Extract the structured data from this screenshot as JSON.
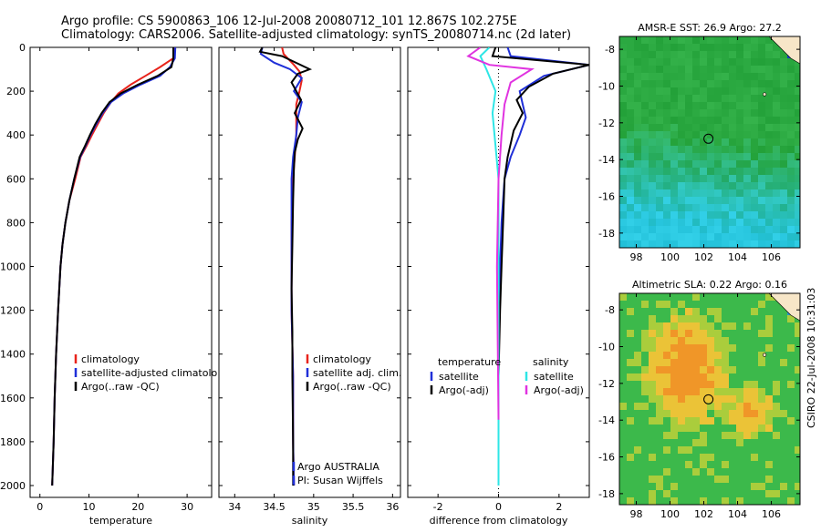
{
  "header": {
    "title_line1": "Argo profile: CS 5900863_106 12-Jul-2008 20080712_101 12.867S 102.275E",
    "title_line2": "Climatology: CARS2006. Satellite-adjusted climatology: synTS_20080714.nc (2d later)"
  },
  "side_stamp": "CSIRO 22-Jul-2008 10:31:03",
  "colors": {
    "climatology": "#e8231b",
    "satellite": "#1f2fd8",
    "argo": "#000000",
    "satellite_diff_salinity": "#2ee6e6",
    "argo_diff_salinity": "#e033e0"
  },
  "chart_data": [
    {
      "id": "temperature",
      "type": "line",
      "xlabel": "temperature",
      "ylabel": "",
      "xlim": [
        -2,
        35
      ],
      "ylim": [
        2050,
        0
      ],
      "xticks": [
        0,
        10,
        20,
        30
      ],
      "yticks": [
        0,
        200,
        400,
        600,
        800,
        1000,
        1200,
        1400,
        1600,
        1800,
        2000
      ],
      "legend_position": "bottom-right",
      "series": [
        {
          "name": "climatology",
          "color_key": "climatology",
          "x": [
            27.3,
            27.2,
            24.5,
            21.5,
            18.5,
            16,
            14.5,
            13,
            11.8,
            10.6,
            9.5,
            8.3,
            7.2,
            6,
            5.2,
            4.6,
            4.2,
            3.7,
            3.3,
            3,
            2.8,
            2.5
          ],
          "y": [
            0,
            50,
            90,
            130,
            170,
            210,
            250,
            300,
            350,
            400,
            450,
            500,
            600,
            700,
            800,
            900,
            1000,
            1200,
            1400,
            1600,
            1800,
            2000
          ]
        },
        {
          "name": "satellite-adjusted climatology",
          "color_key": "satellite",
          "x": [
            27.6,
            27.5,
            26.5,
            24.5,
            20.5,
            17,
            14.5,
            12.8,
            11.5,
            10.3,
            9.3,
            8.2,
            7,
            6,
            5.2,
            4.6,
            4.2,
            3.7,
            3.3,
            3,
            2.8,
            2.5
          ],
          "y": [
            0,
            50,
            90,
            130,
            170,
            210,
            250,
            300,
            350,
            400,
            450,
            500,
            600,
            700,
            800,
            900,
            1000,
            1200,
            1400,
            1600,
            1800,
            2000
          ]
        },
        {
          "name": "Argo(..raw -QC)",
          "color_key": "argo",
          "x": [
            27.2,
            27.2,
            26.8,
            24,
            20,
            16.5,
            14.2,
            12.6,
            11.3,
            10.2,
            9.2,
            8.1,
            7,
            6,
            5.2,
            4.6,
            4.2,
            3.7,
            3.3,
            3,
            2.8,
            2.5
          ],
          "y": [
            0,
            50,
            90,
            130,
            170,
            210,
            250,
            300,
            350,
            400,
            450,
            500,
            600,
            700,
            800,
            900,
            1000,
            1200,
            1400,
            1600,
            1800,
            2000
          ]
        }
      ],
      "legend": [
        "climatology",
        "satellite-adjusted climatolo",
        "Argo(..raw -QC)"
      ]
    },
    {
      "id": "salinity",
      "type": "line",
      "xlabel": "salinity",
      "xlim": [
        33.8,
        36.1
      ],
      "ylim": [
        2050,
        0
      ],
      "xticks": [
        34,
        34.5,
        35,
        35.5,
        36
      ],
      "xtick_labels": [
        "34",
        "34.5",
        "35",
        "35.5",
        "36"
      ],
      "legend_position": "bottom-right",
      "annotation": [
        "Argo AUSTRALIA",
        "PI: Susan Wijffels"
      ],
      "series": [
        {
          "name": "climatology",
          "color_key": "climatology",
          "x": [
            34.6,
            34.62,
            34.75,
            34.82,
            34.85,
            34.82,
            34.78,
            34.78,
            34.78,
            34.76,
            34.74,
            34.72,
            34.72,
            34.72,
            34.74,
            34.74,
            34.75
          ],
          "y": [
            0,
            30,
            80,
            110,
            150,
            200,
            260,
            320,
            400,
            500,
            600,
            800,
            1000,
            1200,
            1500,
            1800,
            2000
          ]
        },
        {
          "name": "satellite adj. clim.",
          "color_key": "satellite",
          "x": [
            34.35,
            34.33,
            34.5,
            34.7,
            34.85,
            34.75,
            34.85,
            34.8,
            34.78,
            34.74,
            34.72,
            34.72,
            34.72,
            34.72,
            34.74,
            34.74,
            34.75
          ],
          "y": [
            0,
            30,
            70,
            100,
            140,
            200,
            250,
            320,
            400,
            500,
            600,
            800,
            1000,
            1200,
            1500,
            1800,
            2000
          ]
        },
        {
          "name": "Argo(..raw -QC)",
          "color_key": "argo",
          "x": [
            34.35,
            34.32,
            34.6,
            34.95,
            34.8,
            34.72,
            34.84,
            34.76,
            34.86,
            34.8,
            34.76,
            34.75,
            34.74,
            34.73,
            34.72,
            34.73,
            34.73,
            34.74,
            34.74
          ],
          "y": [
            0,
            20,
            40,
            100,
            120,
            160,
            240,
            300,
            370,
            420,
            480,
            550,
            700,
            900,
            1100,
            1300,
            1500,
            1800,
            2000
          ]
        }
      ],
      "legend": [
        "climatology",
        "satellite adj. clim.",
        "Argo(..raw -QC)"
      ]
    },
    {
      "id": "difference",
      "type": "line",
      "xlabel": "difference from climatology",
      "xlim": [
        -3,
        3
      ],
      "ylim": [
        2050,
        0
      ],
      "xticks": [
        -2,
        0,
        2
      ],
      "legend_position": "bottom-left",
      "legend_headers": [
        "temperature",
        "salinity"
      ],
      "series": [
        {
          "name": "satellite",
          "group": "temperature",
          "color_key": "satellite",
          "x": [
            0.3,
            0.4,
            3,
            1.5,
            0.7,
            0.8,
            0.9,
            0.7,
            0.4,
            0.2,
            0.1,
            0.05,
            0,
            0,
            0,
            0
          ],
          "y": [
            0,
            40,
            80,
            130,
            200,
            260,
            320,
            400,
            500,
            600,
            800,
            1000,
            1200,
            1500,
            1800,
            2000
          ]
        },
        {
          "name": "Argo(-adj)",
          "group": "temperature",
          "color_key": "argo",
          "x": [
            -0.1,
            -0.2,
            3,
            1.8,
            1.0,
            0.6,
            0.8,
            0.5,
            0.3,
            0.2,
            0.15,
            0.1,
            0.05,
            0,
            0,
            0
          ],
          "y": [
            0,
            40,
            80,
            120,
            180,
            240,
            300,
            380,
            500,
            600,
            800,
            1000,
            1200,
            1500,
            1800,
            2000
          ]
        },
        {
          "name": "satellite",
          "group": "salinity",
          "color_key": "satellite_diff_salinity",
          "x": [
            -0.3,
            -0.6,
            -0.4,
            -0.1,
            -0.2,
            -0.1,
            0,
            0,
            0,
            0
          ],
          "y": [
            0,
            40,
            100,
            200,
            300,
            450,
            600,
            900,
            1400,
            2000
          ]
        },
        {
          "name": "Argo(-adj)",
          "group": "salinity",
          "color_key": "argo_diff_salinity",
          "x": [
            -0.6,
            -1.0,
            -0.3,
            1.1,
            0.4,
            0.2,
            0.1,
            0,
            -0.05,
            0
          ],
          "y": [
            0,
            40,
            80,
            100,
            160,
            260,
            400,
            600,
            1000,
            1700
          ]
        }
      ],
      "legend": [
        "satellite",
        "Argo(-adj)",
        "satellite",
        "Argo(-adj)"
      ]
    },
    {
      "id": "sst_map",
      "type": "heatmap",
      "title": "AMSR-E SST: 26.9 Argo: 27.2",
      "xticks": [
        98,
        100,
        102,
        104,
        106
      ],
      "yticks": [
        -8,
        -10,
        -12,
        -14,
        -16,
        -18
      ],
      "xlim": [
        97,
        107.7
      ],
      "ylim": [
        -18.8,
        -7.3
      ],
      "marker": {
        "lon": 102.275,
        "lat": -12.867
      }
    },
    {
      "id": "sla_map",
      "type": "heatmap",
      "title": "Altimetric SLA: 0.22 Argo: 0.16",
      "xticks": [
        98,
        100,
        102,
        104,
        106
      ],
      "yticks": [
        -8,
        -10,
        -12,
        -14,
        -16,
        -18
      ],
      "xlim": [
        97,
        107.7
      ],
      "ylim": [
        -18.6,
        -7.1
      ],
      "marker": {
        "lon": 102.275,
        "lat": -12.867
      }
    }
  ]
}
